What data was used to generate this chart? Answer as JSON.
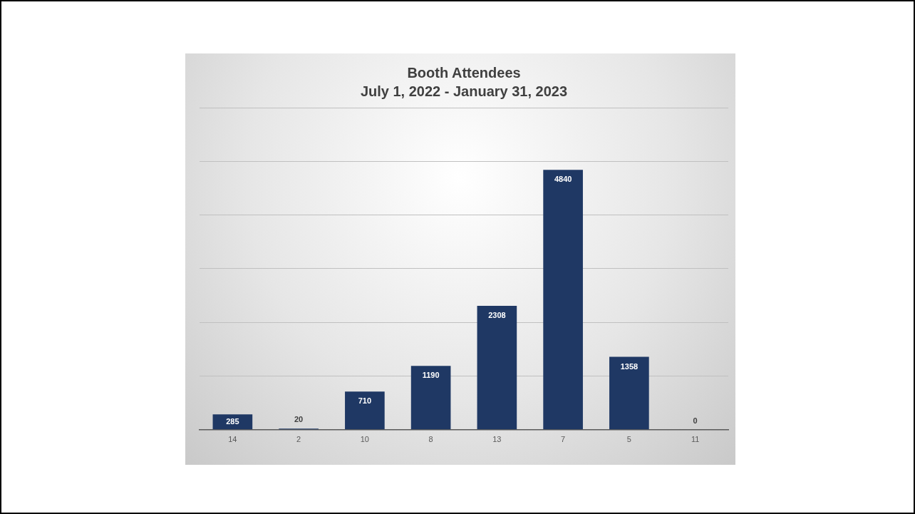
{
  "chart_data": {
    "type": "bar",
    "title": "Booth Attendees",
    "subtitle": "July 1, 2022 - January 31, 2023",
    "categories": [
      "14",
      "2",
      "10",
      "8",
      "13",
      "7",
      "5",
      "11"
    ],
    "values": [
      285,
      20,
      710,
      1190,
      2308,
      4840,
      1358,
      0
    ],
    "color": "#1f3864",
    "ylim": [
      0,
      6000
    ],
    "yticks": [
      {
        "value": 0,
        "label": null
      },
      {
        "value": 1000,
        "label": null
      },
      {
        "value": 2000,
        "label": null
      },
      {
        "value": 3000,
        "label": null
      },
      {
        "value": 4000,
        "label": null
      },
      {
        "value": 5000,
        "label": null
      },
      {
        "value": 6000,
        "label": null
      }
    ],
    "tick_labels": "x",
    "grid": "y",
    "data_labels": true,
    "legend": false
  }
}
